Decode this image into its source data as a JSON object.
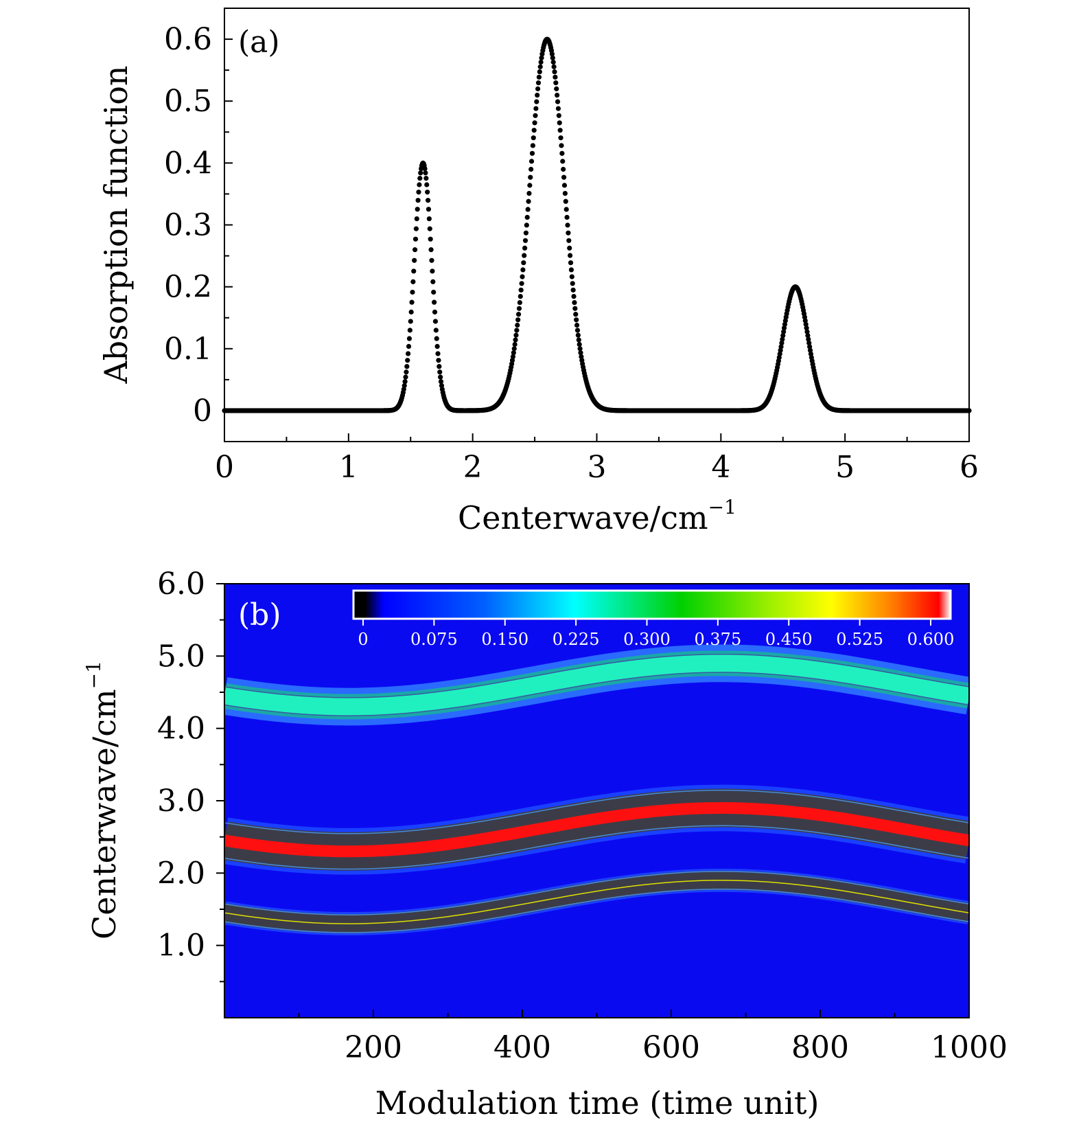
{
  "colors": {
    "background": "#ffffff",
    "axis": "#000000",
    "marker": "#000000",
    "heatmap_background": "#0a0af0"
  },
  "chart_data": [
    {
      "type": "scatter",
      "panel_label": "(a)",
      "xlabel": "Centerwave/cm",
      "xlabel_superscript": "−1",
      "ylabel": "Absorption function",
      "xlim": [
        0,
        6
      ],
      "ylim": [
        -0.05,
        0.65
      ],
      "xticks": [
        0,
        1,
        2,
        3,
        4,
        5,
        6
      ],
      "xtick_labels": [
        "0",
        "1",
        "2",
        "3",
        "4",
        "5",
        "6"
      ],
      "yticks": [
        0,
        0.1,
        0.2,
        0.3,
        0.4,
        0.5,
        0.6
      ],
      "ytick_labels": [
        "0",
        "0.1",
        "0.2",
        "0.3",
        "0.4",
        "0.5",
        "0.6"
      ],
      "grid": false,
      "legend": "none",
      "peaks": [
        {
          "center": 1.6,
          "amplitude": 0.4,
          "sigma": 0.07
        },
        {
          "center": 2.6,
          "amplitude": 0.6,
          "sigma": 0.14
        },
        {
          "center": 4.6,
          "amplitude": 0.2,
          "sigma": 0.1
        }
      ],
      "x_step": 0.005
    },
    {
      "type": "heatmap",
      "panel_label": "(b)",
      "xlabel": "Modulation time (time unit)",
      "ylabel": "Centerwave/cm",
      "ylabel_superscript": "−1",
      "xlim": [
        0,
        1000
      ],
      "ylim": [
        0,
        6
      ],
      "xticks": [
        200,
        400,
        600,
        800,
        1000
      ],
      "xtick_labels": [
        "200",
        "400",
        "600",
        "800",
        "1000"
      ],
      "yticks": [
        1,
        2,
        3,
        4,
        5,
        6
      ],
      "ytick_labels": [
        "1.0",
        "2.0",
        "3.0",
        "4.0",
        "5.0",
        "6.0"
      ],
      "grid": false,
      "colorbar": {
        "placement": "top-inside",
        "min": 0,
        "max": 0.6,
        "tick_values": [
          0,
          0.075,
          0.15,
          0.225,
          0.3,
          0.375,
          0.45,
          0.525,
          0.6
        ],
        "tick_labels": [
          "0",
          "0.075",
          "0.150",
          "0.225",
          "0.300",
          "0.375",
          "0.450",
          "0.525",
          "0.600"
        ]
      },
      "modulation": {
        "amplitude": 0.3,
        "period": 1000,
        "phase_time": 167
      },
      "bands": [
        {
          "base_center": 1.6,
          "amplitude": 0.4,
          "sigma": 0.07
        },
        {
          "base_center": 2.6,
          "amplitude": 0.6,
          "sigma": 0.14
        },
        {
          "base_center": 4.6,
          "amplitude": 0.2,
          "sigma": 0.1
        }
      ]
    }
  ]
}
